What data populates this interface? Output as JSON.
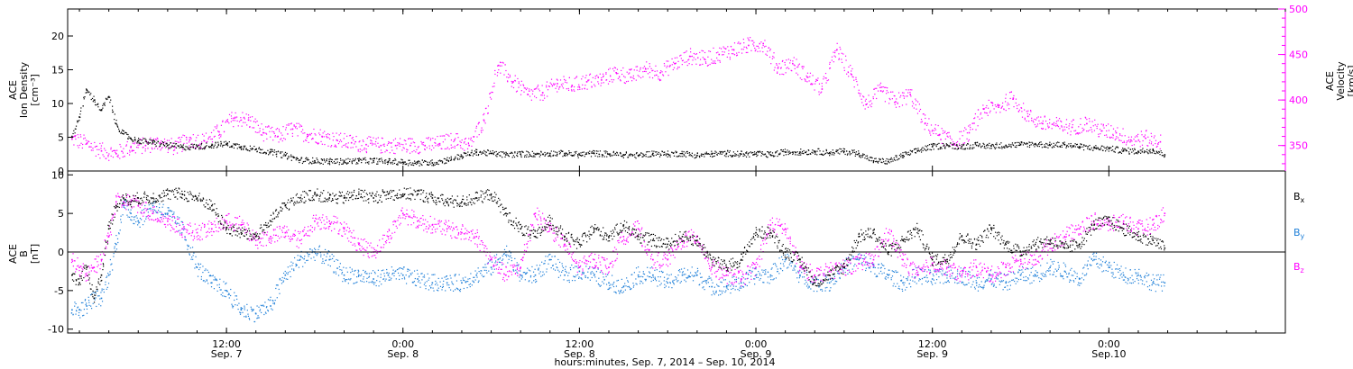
{
  "title_bottom": "hours:minutes, Sep.  7, 2014 – Sep. 10, 2014",
  "colors": {
    "black": "#000000",
    "magenta": "#ff00ff",
    "blue": "#1e7fd8"
  },
  "x_ticks": [
    {
      "time_h": 12,
      "top": "12:00",
      "bottom": "Sep. 7"
    },
    {
      "time_h": 24,
      "top": "0:00",
      "bottom": "Sep. 8"
    },
    {
      "time_h": 36,
      "top": "12:00",
      "bottom": "Sep. 8"
    },
    {
      "time_h": 48,
      "top": "0:00",
      "bottom": "Sep. 9"
    },
    {
      "time_h": 60,
      "top": "12:00",
      "bottom": "Sep. 9"
    },
    {
      "time_h": 72,
      "top": "0:00",
      "bottom": "Sep.10"
    }
  ],
  "chart_data": [
    {
      "type": "scatter",
      "panel": "top",
      "x_unit": "hours since Sep. 7, 2014 00:00",
      "xlim": [
        1.2,
        84.0
      ],
      "left_axis": {
        "label_line1": "ACE",
        "label_line2": "Ion Density",
        "label_line3": "[cm⁻³]",
        "ylim": [
          0,
          24
        ],
        "ticks": [
          0,
          5,
          10,
          15,
          20
        ]
      },
      "right_axis": {
        "label_line1": "ACE",
        "label_line2": "Velocity",
        "label_line3": "[km/s]",
        "ylim": [
          322,
          500
        ],
        "ticks": [
          350,
          400,
          450,
          500
        ]
      },
      "series": [
        {
          "name": "Ion Density",
          "axis": "left",
          "color": "#000000",
          "x": [
            1.5,
            2.0,
            2.5,
            3.0,
            3.5,
            4.0,
            4.5,
            5.0,
            5.5,
            6.0,
            7,
            8,
            9,
            10,
            11,
            12,
            13,
            14,
            15,
            16,
            17,
            18,
            19,
            20,
            21,
            22,
            23,
            24,
            25,
            26,
            27,
            28,
            29,
            30,
            31,
            32,
            33,
            34,
            35,
            36,
            37,
            38,
            39,
            40,
            41,
            42,
            43,
            44,
            45,
            46,
            47,
            48,
            49,
            50,
            51,
            52,
            53,
            54,
            55,
            56,
            57,
            58,
            59,
            60,
            61,
            62,
            63,
            64,
            65,
            66,
            67,
            68,
            69,
            70,
            71,
            72,
            73,
            74,
            75,
            75.8
          ],
          "y": [
            5.0,
            8.0,
            12.0,
            10.5,
            9.0,
            11.0,
            7.0,
            5.5,
            4.8,
            4.5,
            4.2,
            3.8,
            3.5,
            3.6,
            3.8,
            4.0,
            3.6,
            3.2,
            2.8,
            2.3,
            1.6,
            1.5,
            1.4,
            1.4,
            1.5,
            1.5,
            1.4,
            1.3,
            1.2,
            1.2,
            1.6,
            2.2,
            2.8,
            2.6,
            2.4,
            2.5,
            2.5,
            2.6,
            2.6,
            2.4,
            2.6,
            2.5,
            2.4,
            2.3,
            2.6,
            2.5,
            2.6,
            2.3,
            2.5,
            2.6,
            2.5,
            2.5,
            2.4,
            2.8,
            2.8,
            2.9,
            2.7,
            2.9,
            2.6,
            1.5,
            1.4,
            2.3,
            3.0,
            3.6,
            3.8,
            3.6,
            3.8,
            3.7,
            3.8,
            3.9,
            4.0,
            3.8,
            3.9,
            3.6,
            3.4,
            3.3,
            3.0,
            2.9,
            3.1,
            2.4
          ]
        },
        {
          "name": "Velocity",
          "axis": "right",
          "color": "#ff00ff",
          "x": [
            1.5,
            2.5,
            3.5,
            4.5,
            5.5,
            6.5,
            7.5,
            8.5,
            9.5,
            10.5,
            11.5,
            12.5,
            13.5,
            14.5,
            15.5,
            16.5,
            17.5,
            18.5,
            19.5,
            20.5,
            21.5,
            22.5,
            23.5,
            24.5,
            25.5,
            26.5,
            27.5,
            28.5,
            29.5,
            30.5,
            31.5,
            32.5,
            33.5,
            34.5,
            35.5,
            36.5,
            37.5,
            38.5,
            39.5,
            40.5,
            41.5,
            42.5,
            43.5,
            44.5,
            45.5,
            46.5,
            47.5,
            48.5,
            49.5,
            50.5,
            51.5,
            52.5,
            53.5,
            54.5,
            55.5,
            56.5,
            57.5,
            58.5,
            59.5,
            60.5,
            61.5,
            62.5,
            63.5,
            64.5,
            65.5,
            66.5,
            67.5,
            68.5,
            69.5,
            70.5,
            71.5,
            72.5,
            73.5,
            74.5,
            75.5
          ],
          "y": [
            357,
            352,
            344,
            341,
            348,
            350,
            353,
            348,
            356,
            355,
            365,
            380,
            378,
            364,
            360,
            368,
            362,
            360,
            356,
            353,
            351,
            350,
            350,
            350,
            350,
            352,
            356,
            350,
            378,
            438,
            420,
            406,
            408,
            418,
            416,
            420,
            422,
            430,
            425,
            434,
            430,
            440,
            448,
            445,
            450,
            455,
            460,
            462,
            435,
            440,
            425,
            412,
            455,
            428,
            395,
            410,
            398,
            406,
            374,
            362,
            352,
            364,
            390,
            392,
            402,
            382,
            374,
            372,
            370,
            374,
            366,
            364,
            356,
            358,
            354
          ]
        }
      ]
    },
    {
      "type": "scatter",
      "panel": "bottom",
      "x_unit": "hours since Sep. 7, 2014 00:00",
      "xlim": [
        1.2,
        84.0
      ],
      "left_axis": {
        "label_line1": "ACE",
        "label_line2": "B",
        "label_line3": "[nT]",
        "ylim": [
          -10.5,
          10.5
        ],
        "ticks": [
          -10,
          -5,
          0,
          5,
          10
        ]
      },
      "zero_line": true,
      "series": [
        {
          "name": "Bx",
          "legend": "B",
          "sub": "x",
          "color": "#000000",
          "x": [
            1.5,
            2.0,
            2.5,
            3.0,
            3.5,
            4.0,
            4.5,
            5.0,
            5.5,
            6.0,
            7,
            8,
            9,
            10,
            11,
            12,
            13,
            14,
            15,
            16,
            17,
            18,
            19,
            20,
            21,
            22,
            23,
            24,
            25,
            26,
            27,
            28,
            29,
            30,
            31,
            32,
            33,
            34,
            35,
            36,
            37,
            38,
            39,
            40,
            41,
            42,
            43,
            44,
            45,
            46,
            47,
            48,
            49,
            50,
            51,
            52,
            53,
            54,
            55,
            56,
            57,
            58,
            59,
            60,
            61,
            62,
            63,
            64,
            65,
            66,
            67,
            68,
            69,
            70,
            71,
            72,
            73,
            74,
            75,
            75.8
          ],
          "y": [
            -3,
            -4,
            -2,
            -6,
            -3,
            3,
            6,
            7,
            6.5,
            7,
            7,
            7.5,
            7.5,
            7,
            6,
            3,
            2.5,
            2.0,
            4,
            6,
            7,
            7.5,
            7,
            7,
            7.5,
            7,
            7.5,
            7.5,
            7.5,
            7,
            6.5,
            6.5,
            7,
            7.5,
            5,
            3,
            2,
            4,
            2,
            1,
            3,
            2,
            3.5,
            2,
            1.5,
            1,
            2,
            1.5,
            -1,
            -2,
            -1,
            2.5,
            2.5,
            0,
            -1,
            -4,
            -3,
            -2,
            2,
            2.5,
            0,
            1.5,
            3,
            -1,
            -1,
            2,
            1,
            3,
            1,
            0,
            1,
            1.5,
            0.5,
            1,
            3.5,
            4,
            3,
            2,
            1.5,
            0.5
          ]
        },
        {
          "name": "By",
          "legend": "B",
          "sub": "y",
          "color": "#1e7fd8",
          "x": [
            1.5,
            2.0,
            2.5,
            3.0,
            3.5,
            4.0,
            4.5,
            5.0,
            5.5,
            6.0,
            7,
            8,
            9,
            10,
            11,
            12,
            13,
            14,
            15,
            16,
            17,
            18,
            19,
            20,
            21,
            22,
            23,
            24,
            25,
            26,
            27,
            28,
            29,
            30,
            31,
            32,
            33,
            34,
            35,
            36,
            37,
            38,
            39,
            40,
            41,
            42,
            43,
            44,
            45,
            46,
            47,
            48,
            49,
            50,
            51,
            52,
            53,
            54,
            55,
            56,
            57,
            58,
            59,
            60,
            61,
            62,
            63,
            64,
            65,
            66,
            67,
            68,
            69,
            70,
            71,
            72,
            73,
            74,
            75,
            75.8
          ],
          "y": [
            -7.5,
            -7.5,
            -7,
            -6,
            -6,
            -3,
            1,
            6,
            5,
            4,
            6,
            5,
            3,
            -2,
            -4,
            -5,
            -7.5,
            -8,
            -7,
            -3,
            -1,
            0,
            -1,
            -3,
            -3,
            -3.5,
            -3,
            -3,
            -3.5,
            -4,
            -4,
            -4,
            -3,
            -2,
            0,
            -3,
            -3,
            -1,
            -3,
            -2.5,
            -3,
            -4,
            -4.5,
            -3,
            -3,
            -4,
            -3,
            -3,
            -4.5,
            -4.5,
            -4,
            -3,
            -3,
            -1,
            -3,
            -4,
            -4,
            -2,
            -1,
            -2,
            -3,
            -4,
            -3,
            -3.5,
            -3,
            -3,
            -4,
            -3.5,
            -4,
            -3,
            -3,
            -2,
            -2.5,
            -3.5,
            -1,
            -2,
            -3,
            -3,
            -4,
            -4
          ]
        },
        {
          "name": "Bz",
          "legend": "B",
          "sub": "z",
          "color": "#ff00ff",
          "x": [
            1.5,
            2.0,
            2.5,
            3.0,
            3.5,
            4.0,
            4.5,
            5.0,
            5.5,
            6.0,
            7,
            8,
            9,
            10,
            11,
            12,
            13,
            14,
            15,
            16,
            17,
            18,
            19,
            20,
            21,
            22,
            23,
            24,
            25,
            26,
            27,
            28,
            29,
            30,
            31,
            32,
            33,
            34,
            35,
            36,
            37,
            38,
            39,
            40,
            41,
            42,
            43,
            44,
            45,
            46,
            47,
            48,
            49,
            50,
            51,
            52,
            53,
            54,
            55,
            56,
            57,
            58,
            59,
            60,
            61,
            62,
            63,
            64,
            65,
            66,
            67,
            68,
            69,
            70,
            71,
            72,
            73,
            74,
            75,
            75.8
          ],
          "y": [
            -1,
            -2,
            -3,
            -2,
            -1,
            2,
            6.5,
            6.5,
            6.5,
            6,
            5,
            4,
            3,
            2.5,
            3,
            4,
            3.5,
            1.5,
            2,
            2.5,
            1.5,
            4,
            4,
            3,
            1,
            0,
            2,
            5,
            4,
            3.5,
            3,
            2.5,
            2,
            -1,
            -3,
            -2,
            5,
            3,
            1,
            -2,
            -1,
            -2,
            2,
            3,
            -1,
            -1,
            1.5,
            2,
            -2,
            -3,
            -3.5,
            -2,
            3.5,
            3,
            -2,
            -3,
            -2.5,
            -2,
            -1.5,
            -1,
            2.5,
            -1,
            -3,
            -1.5,
            -2,
            -3,
            -2,
            -3,
            -2,
            -1,
            -1,
            1,
            2,
            3,
            4,
            3.5,
            4,
            3,
            3.5,
            5
          ]
        }
      ]
    }
  ]
}
